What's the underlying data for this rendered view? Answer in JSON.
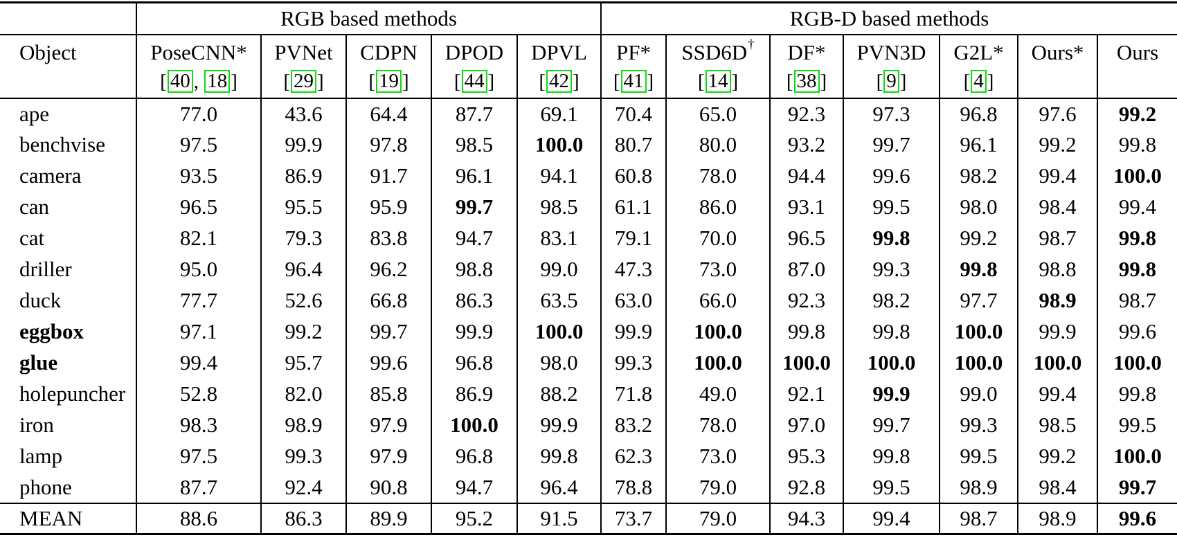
{
  "table": {
    "group_header": {
      "rgb_label": "RGB based methods",
      "rgbd_label": "RGB-D based methods",
      "rgb_span": 5,
      "rgbd_span": 7
    },
    "citation_format": {
      "open": "[",
      "separator": ", ",
      "close": "]"
    },
    "columns": [
      {
        "name": "Object",
        "citations": []
      },
      {
        "name": "PoseCNN*",
        "citations": [
          "40",
          "18"
        ]
      },
      {
        "name": "PVNet",
        "citations": [
          "29"
        ]
      },
      {
        "name": "CDPN",
        "citations": [
          "19"
        ]
      },
      {
        "name": "DPOD",
        "citations": [
          "44"
        ]
      },
      {
        "name": "DPVL",
        "citations": [
          "42"
        ]
      },
      {
        "name": "PF*",
        "citations": [
          "41"
        ]
      },
      {
        "name": "SSD6D",
        "sup": "†",
        "citations": [
          "14"
        ]
      },
      {
        "name": "DF*",
        "citations": [
          "38"
        ]
      },
      {
        "name": "PVN3D",
        "citations": [
          "9"
        ]
      },
      {
        "name": "G2L*",
        "citations": [
          "4"
        ]
      },
      {
        "name": "Ours*",
        "citations": []
      },
      {
        "name": "Ours",
        "citations": []
      }
    ],
    "rows": [
      {
        "object": "ape",
        "bold_label": false,
        "values": [
          "77.0",
          "43.6",
          "64.4",
          "87.7",
          "69.1",
          "70.4",
          "65.0",
          "92.3",
          "97.3",
          "96.8",
          "97.6",
          "99.2"
        ],
        "bold": [
          11
        ]
      },
      {
        "object": "benchvise",
        "bold_label": false,
        "values": [
          "97.5",
          "99.9",
          "97.8",
          "98.5",
          "100.0",
          "80.7",
          "80.0",
          "93.2",
          "99.7",
          "96.1",
          "99.2",
          "99.8"
        ],
        "bold": [
          4
        ]
      },
      {
        "object": "camera",
        "bold_label": false,
        "values": [
          "93.5",
          "86.9",
          "91.7",
          "96.1",
          "94.1",
          "60.8",
          "78.0",
          "94.4",
          "99.6",
          "98.2",
          "99.4",
          "100.0"
        ],
        "bold": [
          11
        ]
      },
      {
        "object": "can",
        "bold_label": false,
        "values": [
          "96.5",
          "95.5",
          "95.9",
          "99.7",
          "98.5",
          "61.1",
          "86.0",
          "93.1",
          "99.5",
          "98.0",
          "98.4",
          "99.4"
        ],
        "bold": [
          3
        ]
      },
      {
        "object": "cat",
        "bold_label": false,
        "values": [
          "82.1",
          "79.3",
          "83.8",
          "94.7",
          "83.1",
          "79.1",
          "70.0",
          "96.5",
          "99.8",
          "99.2",
          "98.7",
          "99.8"
        ],
        "bold": [
          8,
          11
        ]
      },
      {
        "object": "driller",
        "bold_label": false,
        "values": [
          "95.0",
          "96.4",
          "96.2",
          "98.8",
          "99.0",
          "47.3",
          "73.0",
          "87.0",
          "99.3",
          "99.8",
          "98.8",
          "99.8"
        ],
        "bold": [
          9,
          11
        ]
      },
      {
        "object": "duck",
        "bold_label": false,
        "values": [
          "77.7",
          "52.6",
          "66.8",
          "86.3",
          "63.5",
          "63.0",
          "66.0",
          "92.3",
          "98.2",
          "97.7",
          "98.9",
          "98.7"
        ],
        "bold": [
          10
        ]
      },
      {
        "object": "eggbox",
        "bold_label": true,
        "values": [
          "97.1",
          "99.2",
          "99.7",
          "99.9",
          "100.0",
          "99.9",
          "100.0",
          "99.8",
          "99.8",
          "100.0",
          "99.9",
          "99.6"
        ],
        "bold": [
          4,
          6,
          9
        ]
      },
      {
        "object": "glue",
        "bold_label": true,
        "values": [
          "99.4",
          "95.7",
          "99.6",
          "96.8",
          "98.0",
          "99.3",
          "100.0",
          "100.0",
          "100.0",
          "100.0",
          "100.0",
          "100.0"
        ],
        "bold": [
          6,
          7,
          8,
          9,
          10,
          11
        ]
      },
      {
        "object": "holepuncher",
        "bold_label": false,
        "values": [
          "52.8",
          "82.0",
          "85.8",
          "86.9",
          "88.2",
          "71.8",
          "49.0",
          "92.1",
          "99.9",
          "99.0",
          "99.4",
          "99.8"
        ],
        "bold": [
          8
        ]
      },
      {
        "object": "iron",
        "bold_label": false,
        "values": [
          "98.3",
          "98.9",
          "97.9",
          "100.0",
          "99.9",
          "83.2",
          "78.0",
          "97.0",
          "99.7",
          "99.3",
          "98.5",
          "99.5"
        ],
        "bold": [
          3
        ]
      },
      {
        "object": "lamp",
        "bold_label": false,
        "values": [
          "97.5",
          "99.3",
          "97.9",
          "96.8",
          "99.8",
          "62.3",
          "73.0",
          "95.3",
          "99.8",
          "99.5",
          "99.2",
          "100.0"
        ],
        "bold": [
          11
        ]
      },
      {
        "object": "phone",
        "bold_label": false,
        "values": [
          "87.7",
          "92.4",
          "90.8",
          "94.7",
          "96.4",
          "78.8",
          "79.0",
          "92.8",
          "99.5",
          "98.9",
          "98.4",
          "99.7"
        ],
        "bold": [
          11
        ]
      }
    ],
    "mean": {
      "object": "MEAN",
      "values": [
        "88.6",
        "86.3",
        "89.9",
        "95.2",
        "91.5",
        "73.7",
        "79.0",
        "94.3",
        "99.4",
        "98.7",
        "98.9",
        "99.6"
      ],
      "bold": [
        11
      ]
    }
  },
  "colors": {
    "citation_box": "#0bdc0b",
    "text": "#000000",
    "background": "#ffffff",
    "rule": "#000000"
  }
}
